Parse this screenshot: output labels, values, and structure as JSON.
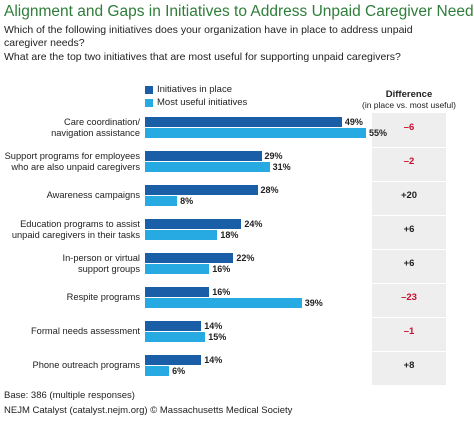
{
  "chart_data": {
    "type": "bar",
    "orientation": "horizontal",
    "title": "Alignment and Gaps in Initiatives to Address Unpaid Caregiver Needs",
    "questions": [
      "Which of the following initiatives does your organization have in place to address unpaid caregiver needs?",
      "What are the top two initiatives that are most useful for supporting unpaid caregivers?"
    ],
    "categories": [
      "Care coordination/\nnavigation assistance",
      "Support programs for employees\nwho are also unpaid caregivers",
      "Awareness campaigns",
      "Education programs to assist\nunpaid caregivers in their tasks",
      "In-person or virtual\nsupport groups",
      "Respite programs",
      "Formal needs assessment",
      "Phone outreach programs"
    ],
    "series": [
      {
        "name": "Initiatives in place",
        "color": "#1a5ea8",
        "values": [
          49,
          29,
          28,
          24,
          22,
          16,
          14,
          14
        ],
        "value_labels": [
          "49%",
          "29%",
          "28%",
          "24%",
          "22%",
          "16%",
          "14%",
          "14%"
        ]
      },
      {
        "name": "Most useful initiatives",
        "color": "#27a9e1",
        "values": [
          55,
          31,
          8,
          18,
          16,
          39,
          15,
          6
        ],
        "value_labels": [
          "55%",
          "31%",
          "8%",
          "18%",
          "16%",
          "39%",
          "15%",
          "6%"
        ]
      }
    ],
    "difference": {
      "title": "Difference",
      "subtitle": "(in place vs. most useful)",
      "values": [
        -6,
        -2,
        20,
        6,
        6,
        -23,
        -1,
        8
      ],
      "value_labels": [
        "–6",
        "–2",
        "+20",
        "+6",
        "+6",
        "–23",
        "–1",
        "+8"
      ],
      "negative_color": "#c8102e",
      "positive_color": "#222222"
    },
    "note": "Base: 386 (multiple responses)",
    "source": "NEJM Catalyst (catalyst.nejm.org) © Massachusetts Medical Society"
  }
}
